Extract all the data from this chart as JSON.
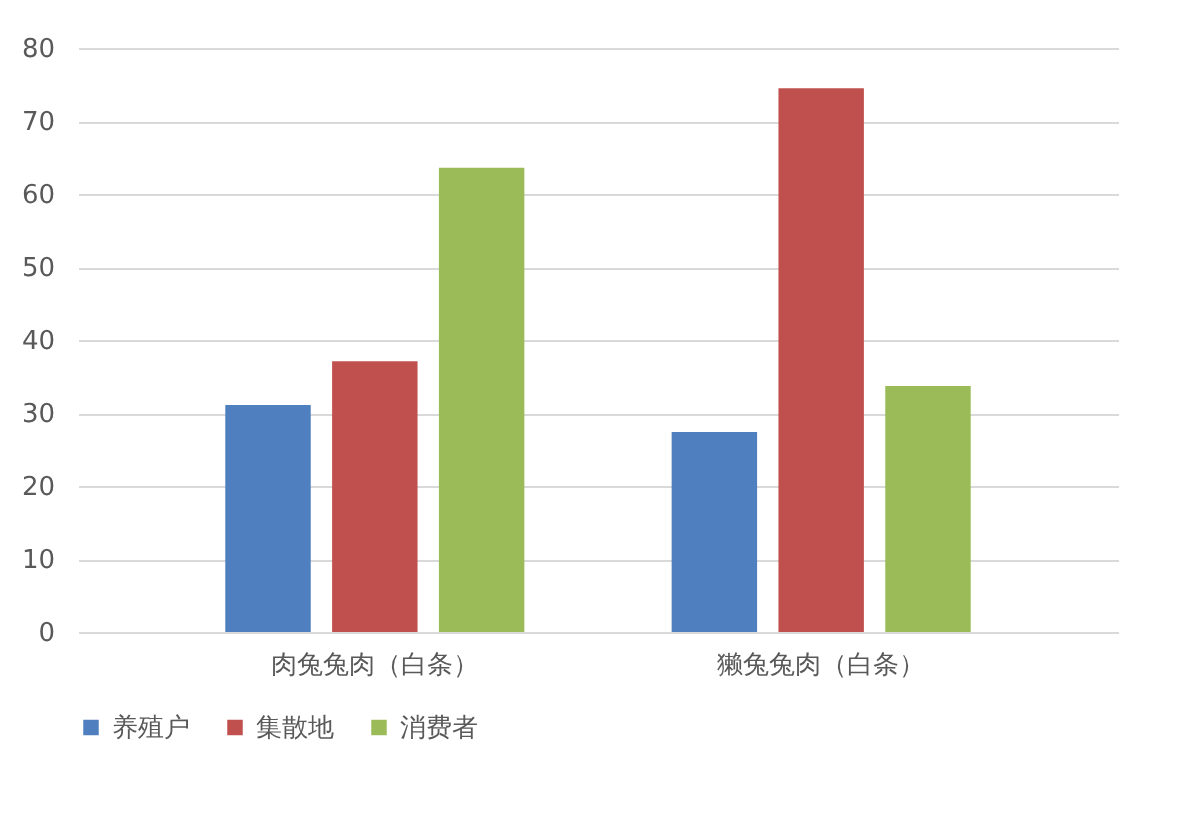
{
  "chart_data": {
    "type": "bar",
    "categories": [
      "肉兔兔肉（白条）",
      "獭兔兔肉（白条）"
    ],
    "series": [
      {
        "name": "养殖户",
        "color": "#4f7fbf",
        "values": [
          31.1,
          27.4
        ]
      },
      {
        "name": "集散地",
        "color": "#c0504d",
        "values": [
          37.1,
          74.5
        ]
      },
      {
        "name": "消费者",
        "color": "#9bbb59",
        "values": [
          63.6,
          33.7
        ]
      }
    ],
    "ylim": [
      0,
      80
    ],
    "yticks": [
      0,
      10,
      20,
      30,
      40,
      50,
      60,
      70,
      80
    ],
    "grid": "y",
    "legend": "bottom"
  }
}
